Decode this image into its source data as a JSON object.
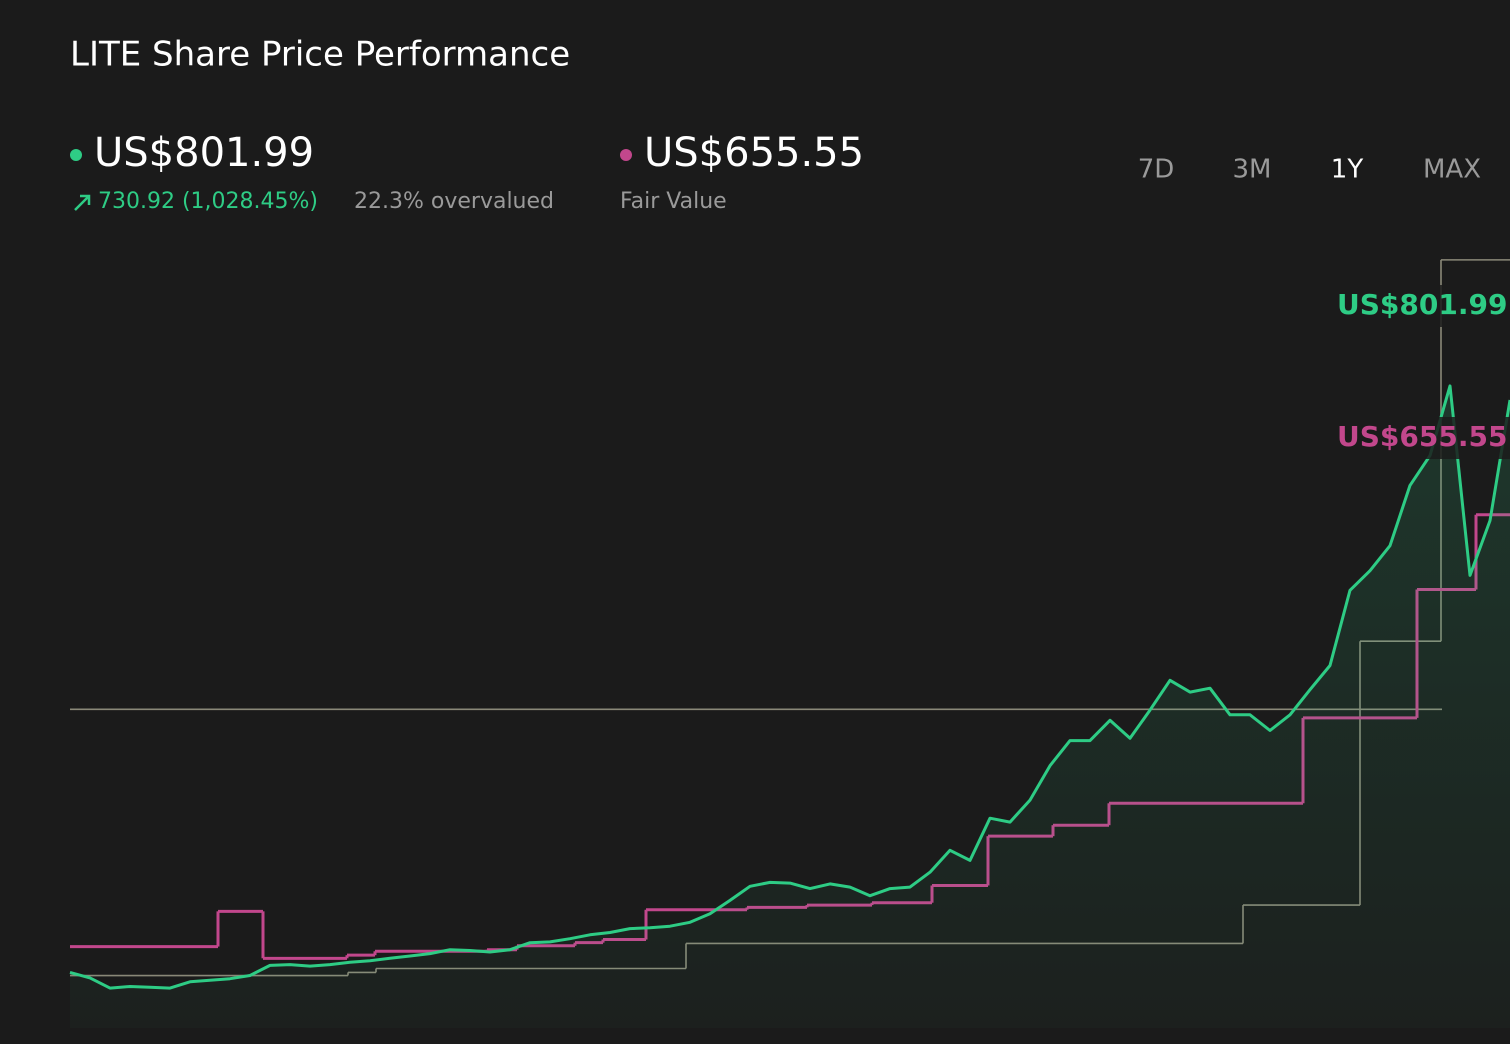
{
  "header": {
    "title": "LITE Share Price Performance",
    "price": "US$801.99",
    "change": "730.92 (1,028.45%)",
    "valuation": "22.3% overvalued",
    "fair_value": "US$655.55",
    "fair_value_label": "Fair Value",
    "ranges": [
      "7D",
      "3M",
      "1Y",
      "MAX"
    ],
    "active_range": "1Y"
  },
  "chart_data": {
    "type": "line",
    "xlim": [
      0,
      72
    ],
    "ylim": [
      0,
      1000
    ],
    "series": [
      {
        "color": "#8a8878",
        "step": true,
        "x": [
          0,
          13.9,
          15.3,
          30.8,
          58.65,
          64.5,
          68.55
        ],
        "values": [
          67,
          71,
          76,
          108,
          157,
          494,
          981
        ]
      },
      {
        "color": "#8a8878",
        "step": true,
        "x": [
          0
        ],
        "values": [
          407
        ],
        "end": 68.6
      },
      {
        "name": "Fair Value",
        "color": "#c2478c",
        "step": true,
        "x": [
          0,
          7.4,
          9.65,
          13.85,
          15.25,
          20.85,
          22.35,
          25.25,
          26.65,
          28.8,
          33.85,
          36.85,
          40.1,
          43.1,
          45.9,
          49.15,
          51.95,
          61.65,
          67.35,
          70.3
        ],
        "values": [
          104,
          149,
          89,
          93,
          98,
          100,
          105,
          109,
          113,
          151,
          154,
          157,
          160,
          182,
          245,
          259,
          287,
          396,
          560,
          655.55
        ],
        "value_label": "US$655.55"
      },
      {
        "name": "Share Price",
        "color": "#2ecc85",
        "values": [
          71,
          64,
          51,
          53,
          52,
          51,
          59,
          61,
          63,
          67,
          80,
          81,
          79,
          81,
          84,
          86,
          89,
          92,
          95,
          100,
          99,
          97,
          100,
          109,
          110,
          114,
          119,
          122,
          127,
          128,
          130,
          135,
          146,
          163,
          181,
          186,
          185,
          178,
          184,
          180,
          169,
          178,
          180,
          199,
          227,
          214,
          268,
          263,
          291,
          335,
          367,
          367,
          393,
          370,
          406,
          444,
          429,
          434,
          400,
          400,
          380,
          400,
          432,
          463,
          559,
          584,
          616,
          693,
          731,
          820,
          578,
          648,
          801.99
        ],
        "value_label": "US$801.99"
      }
    ]
  }
}
